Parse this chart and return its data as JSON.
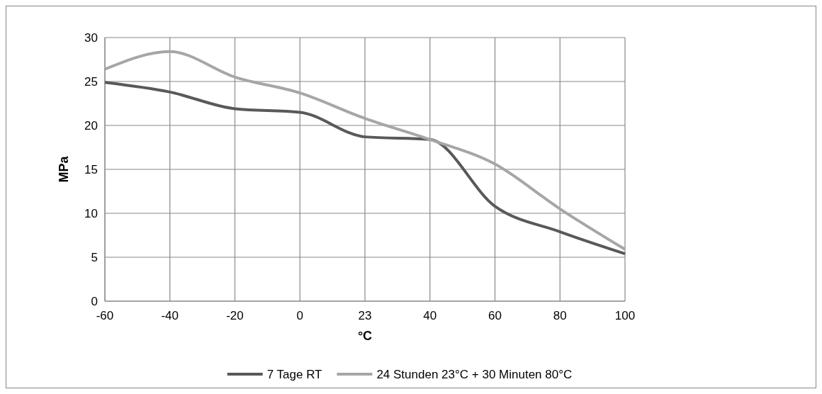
{
  "chart_data": {
    "type": "line",
    "xlabel": "°C",
    "ylabel": "MPa",
    "categories": [
      "-60",
      "-40",
      "-20",
      "0",
      "23",
      "40",
      "60",
      "80",
      "100"
    ],
    "series": [
      {
        "name": "7 Tage RT",
        "color": "#595959",
        "values": [
          24.9,
          23.8,
          21.9,
          21.5,
          18.7,
          18.4,
          10.8,
          7.9,
          5.4
        ]
      },
      {
        "name": "24 Stunden 23°C + 30 Minuten 80°C",
        "color": "#a6a6a6",
        "values": [
          26.4,
          28.4,
          25.5,
          23.7,
          20.8,
          18.4,
          15.6,
          10.5,
          5.9
        ]
      }
    ],
    "ylim": [
      0,
      30
    ],
    "yticks": [
      0,
      5,
      10,
      15,
      20,
      25,
      30
    ],
    "grid": true,
    "legend": "bottom",
    "marker": "none",
    "line_style": "solid"
  }
}
